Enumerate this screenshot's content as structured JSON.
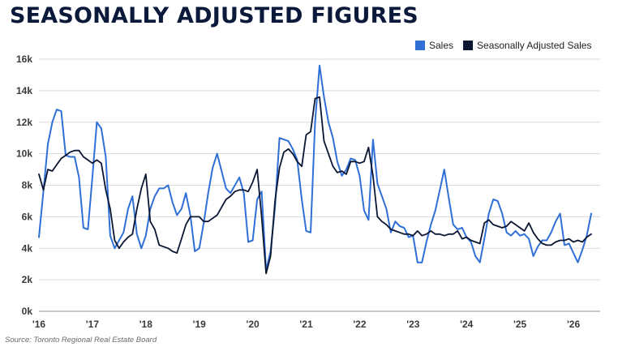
{
  "title": "SEASONALLY ADJUSTED FIGURES",
  "source": "Source: Toronto Regional Real Estate Board",
  "chart_data": {
    "type": "line",
    "title": "SEASONALLY ADJUSTED FIGURES",
    "xlabel": "",
    "ylabel": "",
    "ylim": [
      0,
      16000
    ],
    "xlim": [
      2016,
      2026.5
    ],
    "y_ticks": [
      0,
      2000,
      4000,
      6000,
      8000,
      10000,
      12000,
      14000,
      16000
    ],
    "y_tick_labels": [
      "0k",
      "2k",
      "4k",
      "6k",
      "8k",
      "10k",
      "12k",
      "14k",
      "16k"
    ],
    "x_ticks": [
      2016,
      2017,
      2018,
      2019,
      2020,
      2021,
      2022,
      2023,
      2024,
      2025,
      2026
    ],
    "x_tick_labels": [
      "'16",
      "'17",
      "'18",
      "'19",
      "'20",
      "'21",
      "'22",
      "'23",
      "'24",
      "'25",
      "'26"
    ],
    "grid": "horizontal",
    "legend_position": "top-right",
    "series": [
      {
        "name": "Sales",
        "color": "#2f6fd6",
        "x": [
          2016.0,
          2016.083,
          2016.167,
          2016.25,
          2016.333,
          2016.417,
          2016.5,
          2016.583,
          2016.667,
          2016.75,
          2016.833,
          2016.917,
          2017.0,
          2017.083,
          2017.167,
          2017.25,
          2017.333,
          2017.417,
          2017.5,
          2017.583,
          2017.667,
          2017.75,
          2017.833,
          2017.917,
          2018.0,
          2018.083,
          2018.167,
          2018.25,
          2018.333,
          2018.417,
          2018.5,
          2018.583,
          2018.667,
          2018.75,
          2018.833,
          2018.917,
          2019.0,
          2019.083,
          2019.167,
          2019.25,
          2019.333,
          2019.417,
          2019.5,
          2019.583,
          2019.667,
          2019.75,
          2019.833,
          2019.917,
          2020.0,
          2020.083,
          2020.167,
          2020.25,
          2020.333,
          2020.417,
          2020.5,
          2020.583,
          2020.667,
          2020.75,
          2020.833,
          2020.917,
          2021.0,
          2021.083,
          2021.167,
          2021.25,
          2021.333,
          2021.417,
          2021.5,
          2021.583,
          2021.667,
          2021.75,
          2021.833,
          2021.917,
          2022.0,
          2022.083,
          2022.167,
          2022.25,
          2022.333,
          2022.417,
          2022.5,
          2022.583,
          2022.667,
          2022.75,
          2022.833,
          2022.917,
          2023.0,
          2023.083,
          2023.167,
          2023.25,
          2023.333,
          2023.417,
          2023.5,
          2023.583,
          2023.667,
          2023.75,
          2023.833,
          2023.917,
          2024.0,
          2024.083,
          2024.167,
          2024.25,
          2024.333,
          2024.417,
          2024.5,
          2024.583,
          2024.667,
          2024.75,
          2024.833,
          2024.917,
          2025.0,
          2025.083,
          2025.167,
          2025.25,
          2025.333,
          2025.417,
          2025.5,
          2025.583,
          2025.667,
          2025.75,
          2025.833,
          2025.917,
          2026.0,
          2026.083,
          2026.167,
          2026.25,
          2026.333
        ],
        "values": [
          4700,
          7600,
          10600,
          12000,
          12800,
          12700,
          9900,
          9800,
          9800,
          8500,
          5300,
          5200,
          8500,
          12000,
          11600,
          9800,
          4800,
          4000,
          4500,
          5000,
          6500,
          7300,
          4900,
          4000,
          4800,
          6500,
          7300,
          7800,
          7800,
          8000,
          6900,
          6100,
          6500,
          7500,
          6100,
          3800,
          4000,
          5600,
          7500,
          9100,
          10000,
          8900,
          7800,
          7500,
          8000,
          8500,
          7500,
          4400,
          4500,
          7100,
          7600,
          2600,
          3800,
          6600,
          11000,
          10900,
          10800,
          10300,
          9600,
          7100,
          5100,
          5000,
          12000,
          15600,
          13600,
          12000,
          11000,
          9500,
          8600,
          9000,
          9700,
          9600,
          8600,
          6400,
          5800,
          10900,
          8100,
          7300,
          6500,
          5000,
          5700,
          5400,
          5300,
          4700,
          4800,
          3100,
          3100,
          4400,
          5500,
          6400,
          7700,
          9000,
          7200,
          5500,
          5200,
          5300,
          4700,
          4400,
          3500,
          3100,
          4600,
          6200,
          7100,
          7000,
          6200,
          5000,
          4800,
          5100,
          4800,
          4900,
          4600,
          3500,
          4100,
          4500,
          4500,
          5000,
          5700,
          6200,
          4200,
          4300,
          3700,
          3100,
          3900,
          4800,
          6200
        ]
      },
      {
        "name": "Seasonally Adjusted Sales",
        "color": "#0b1633",
        "x": [
          2016.0,
          2016.083,
          2016.167,
          2016.25,
          2016.333,
          2016.417,
          2016.5,
          2016.583,
          2016.667,
          2016.75,
          2016.833,
          2016.917,
          2017.0,
          2017.083,
          2017.167,
          2017.25,
          2017.333,
          2017.417,
          2017.5,
          2017.583,
          2017.667,
          2017.75,
          2017.833,
          2017.917,
          2018.0,
          2018.083,
          2018.167,
          2018.25,
          2018.333,
          2018.417,
          2018.5,
          2018.583,
          2018.667,
          2018.75,
          2018.833,
          2018.917,
          2019.0,
          2019.083,
          2019.167,
          2019.25,
          2019.333,
          2019.417,
          2019.5,
          2019.583,
          2019.667,
          2019.75,
          2019.833,
          2019.917,
          2020.0,
          2020.083,
          2020.167,
          2020.25,
          2020.333,
          2020.417,
          2020.5,
          2020.583,
          2020.667,
          2020.75,
          2020.833,
          2020.917,
          2021.0,
          2021.083,
          2021.167,
          2021.25,
          2021.333,
          2021.417,
          2021.5,
          2021.583,
          2021.667,
          2021.75,
          2021.833,
          2021.917,
          2022.0,
          2022.083,
          2022.167,
          2022.25,
          2022.333,
          2022.417,
          2022.5,
          2022.583,
          2022.667,
          2022.75,
          2022.833,
          2022.917,
          2023.0,
          2023.083,
          2023.167,
          2023.25,
          2023.333,
          2023.417,
          2023.5,
          2023.583,
          2023.667,
          2023.75,
          2023.833,
          2023.917,
          2024.0,
          2024.083,
          2024.167,
          2024.25,
          2024.333,
          2024.417,
          2024.5,
          2024.583,
          2024.667,
          2024.75,
          2024.833,
          2024.917,
          2025.0,
          2025.083,
          2025.167,
          2025.25,
          2025.333,
          2025.417,
          2025.5,
          2025.583,
          2025.667,
          2025.75,
          2025.833,
          2025.917,
          2026.0,
          2026.083,
          2026.167,
          2026.25,
          2026.333
        ],
        "values": [
          8700,
          7700,
          9000,
          8900,
          9300,
          9700,
          9900,
          10100,
          10200,
          10200,
          9800,
          9600,
          9400,
          9600,
          9400,
          7700,
          6500,
          4500,
          4000,
          4400,
          4700,
          4900,
          6500,
          7800,
          8700,
          5700,
          5200,
          4200,
          4100,
          4000,
          3800,
          3700,
          4600,
          5500,
          6000,
          6000,
          6000,
          5700,
          5700,
          5900,
          6100,
          6600,
          7100,
          7300,
          7600,
          7700,
          7700,
          7600,
          8200,
          9000,
          6000,
          2400,
          3500,
          7000,
          9100,
          10100,
          10300,
          10000,
          9500,
          9200,
          11200,
          11400,
          13500,
          13600,
          10800,
          10000,
          9200,
          8800,
          8900,
          8700,
          9500,
          9500,
          9400,
          9500,
          10400,
          8600,
          6000,
          5700,
          5500,
          5200,
          5100,
          5000,
          4900,
          4900,
          4800,
          5100,
          4800,
          4900,
          5100,
          4900,
          4900,
          4800,
          4900,
          4900,
          5100,
          4600,
          4700,
          4500,
          4400,
          4300,
          5600,
          5800,
          5500,
          5400,
          5300,
          5400,
          5700,
          5500,
          5300,
          5100,
          5600,
          5000,
          4600,
          4300,
          4200,
          4200,
          4400,
          4500,
          4500,
          4600,
          4400,
          4500,
          4400,
          4700,
          4900
        ]
      }
    ]
  },
  "legend": {
    "items": [
      {
        "label": "Sales",
        "color": "#2f6fd6"
      },
      {
        "label": "Seasonally Adjusted Sales",
        "color": "#0b1633"
      }
    ]
  }
}
